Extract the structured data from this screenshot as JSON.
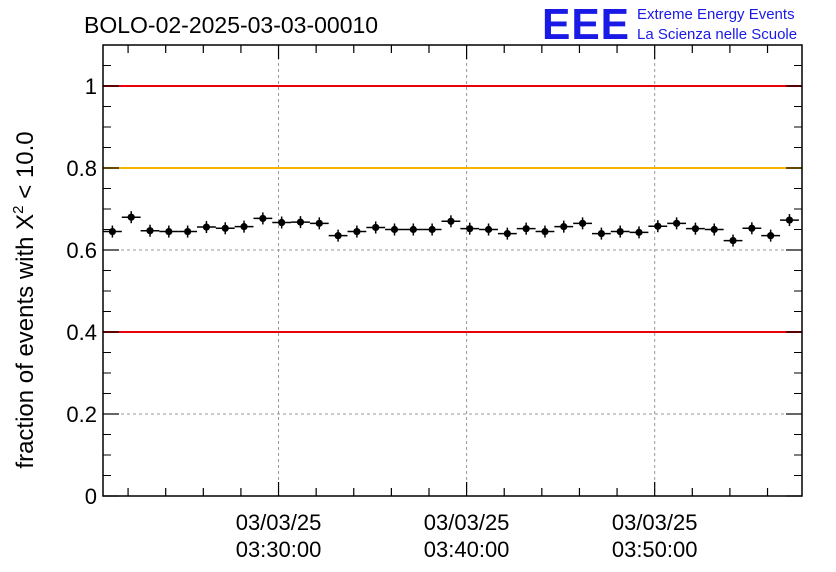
{
  "chart_data": {
    "type": "scatter",
    "title": "BOLO-02-2025-03-03-00010",
    "ylabel_main": "fraction of events with X",
    "ylabel_sup": "2",
    "ylabel_tail": " < 10.0",
    "ylim": [
      0,
      1.1
    ],
    "yticks": [
      0,
      0.2,
      0.4,
      0.6,
      0.8,
      1
    ],
    "ytick_labels": [
      "0",
      "0.2",
      "0.4",
      "0.6",
      "0.8",
      "1"
    ],
    "xlim": [
      "03:20:40",
      "03:57:50"
    ],
    "xticks": [
      {
        "time": "03:30:00",
        "date": "03/03/25",
        "label": "03:30:00"
      },
      {
        "time": "03:40:00",
        "date": "03/03/25",
        "label": "03:40:00"
      },
      {
        "time": "03:50:00",
        "date": "03/03/25",
        "label": "03:50:00"
      }
    ],
    "grid": true,
    "bin_width_s": 60,
    "reference_lines": [
      {
        "y": 1.0,
        "color": "#e8000b"
      },
      {
        "y": 0.8,
        "color": "#f5b400"
      },
      {
        "y": 0.4,
        "color": "#e8000b"
      }
    ],
    "series": [
      {
        "color": "#000000",
        "x": [
          "03:21:10",
          "03:22:10",
          "03:23:10",
          "03:24:10",
          "03:25:10",
          "03:26:10",
          "03:27:10",
          "03:28:10",
          "03:29:10",
          "03:30:10",
          "03:31:10",
          "03:32:10",
          "03:33:10",
          "03:34:10",
          "03:35:10",
          "03:36:10",
          "03:37:10",
          "03:38:10",
          "03:39:10",
          "03:40:10",
          "03:41:10",
          "03:42:10",
          "03:43:10",
          "03:44:10",
          "03:45:10",
          "03:46:10",
          "03:47:10",
          "03:48:10",
          "03:49:10",
          "03:50:10",
          "03:51:10",
          "03:52:10",
          "03:53:10",
          "03:54:10",
          "03:55:10",
          "03:56:10",
          "03:57:10"
        ],
        "y": [
          0.645,
          0.68,
          0.647,
          0.645,
          0.645,
          0.656,
          0.653,
          0.657,
          0.677,
          0.667,
          0.668,
          0.665,
          0.635,
          0.645,
          0.655,
          0.65,
          0.65,
          0.65,
          0.67,
          0.652,
          0.65,
          0.64,
          0.652,
          0.645,
          0.657,
          0.665,
          0.64,
          0.645,
          0.643,
          0.658,
          0.665,
          0.652,
          0.65,
          0.623,
          0.653,
          0.635,
          0.673
        ]
      }
    ]
  },
  "logo": {
    "mark": "EEE",
    "line1": "Extreme Energy Events",
    "line2": "La Scienza nelle Scuole",
    "color": "#1a1ae6"
  }
}
